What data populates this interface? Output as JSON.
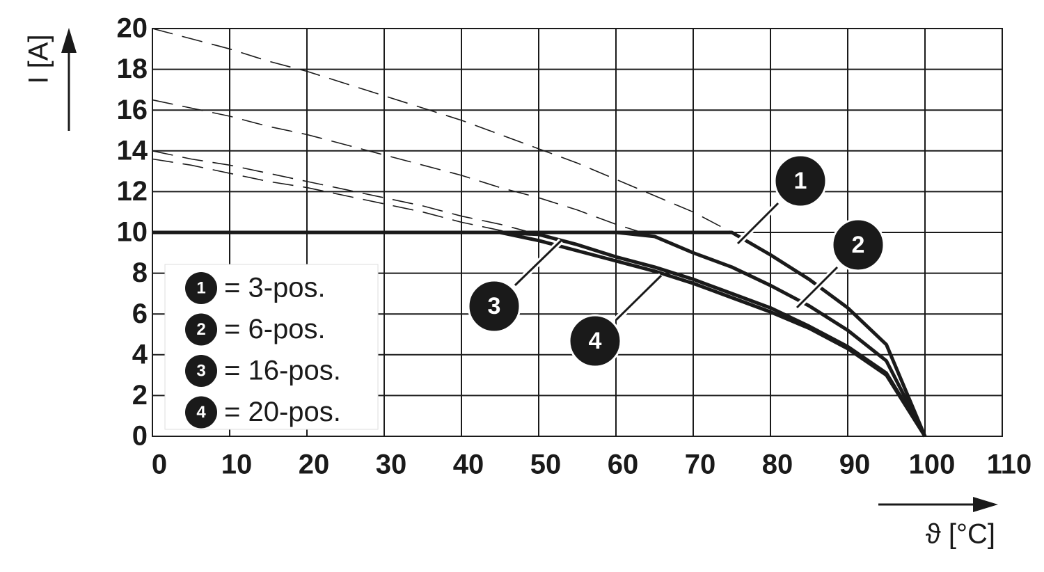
{
  "chart_data": {
    "type": "line",
    "y_label": "I [A]",
    "x_label": "ϑ [°C]",
    "x": [
      0,
      5,
      10,
      15,
      20,
      25,
      30,
      35,
      40,
      45,
      50,
      55,
      60,
      65,
      70,
      75,
      80,
      85,
      90,
      95,
      100
    ],
    "xlim": [
      0,
      110
    ],
    "xticks": [
      0,
      10,
      20,
      30,
      40,
      50,
      60,
      70,
      80,
      90,
      100,
      110
    ],
    "ylim": [
      0,
      20
    ],
    "yticks": [
      0,
      2,
      4,
      6,
      8,
      10,
      12,
      14,
      16,
      18,
      20
    ],
    "grid": true,
    "legend": "lower left",
    "series": [
      {
        "label": "1",
        "name": "= 3-pos.",
        "color": "#1a1a1a",
        "values": [
          20,
          19.5,
          19.0,
          18.4,
          17.9,
          17.3,
          16.7,
          16.1,
          15.5,
          14.8,
          14.1,
          13.4,
          12.6,
          11.8,
          11.0,
          10.0,
          8.9,
          7.7,
          6.3,
          4.5,
          0
        ],
        "rated_values": [
          10,
          10,
          10,
          10,
          10,
          10,
          10,
          10,
          10,
          10,
          10,
          10,
          10,
          10,
          10,
          10.0,
          8.9,
          7.7,
          6.3,
          4.5,
          0
        ]
      },
      {
        "label": "2",
        "name": "= 6-pos.",
        "color": "#1a1a1a",
        "values": [
          16.5,
          16.1,
          15.7,
          15.2,
          14.8,
          14.3,
          13.8,
          13.3,
          12.8,
          12.2,
          11.7,
          11.1,
          10.4,
          9.8,
          9.0,
          8.3,
          7.4,
          6.4,
          5.2,
          3.7,
          0
        ],
        "rated_values": [
          10,
          10,
          10,
          10,
          10,
          10,
          10,
          10,
          10,
          10,
          10,
          10,
          10,
          9.8,
          9.0,
          8.3,
          7.4,
          6.4,
          5.2,
          3.7,
          0
        ]
      },
      {
        "label": "3",
        "name": "= 16-pos.",
        "color": "#1a1a1a",
        "values": [
          14,
          13.6,
          13.3,
          12.9,
          12.5,
          12.1,
          11.7,
          11.3,
          10.8,
          10.4,
          9.9,
          9.4,
          8.8,
          8.3,
          7.7,
          7.0,
          6.3,
          5.4,
          4.4,
          3.1,
          0
        ],
        "rated_values": [
          10,
          10,
          10,
          10,
          10,
          10,
          10,
          10,
          10,
          10,
          9.9,
          9.4,
          8.8,
          8.3,
          7.7,
          7.0,
          6.3,
          5.4,
          4.4,
          3.1,
          0
        ]
      },
      {
        "label": "4",
        "name": "= 20-pos.",
        "color": "#1a1a1a",
        "values": [
          13.6,
          13.3,
          12.9,
          12.5,
          12.2,
          11.8,
          11.4,
          11.0,
          10.5,
          10.1,
          9.6,
          9.1,
          8.6,
          8.1,
          7.5,
          6.8,
          6.1,
          5.3,
          4.3,
          3.0,
          0
        ],
        "rated_values": [
          10,
          10,
          10,
          10,
          10,
          10,
          10,
          10,
          10,
          10,
          9.6,
          9.1,
          8.6,
          8.1,
          7.5,
          6.8,
          6.1,
          5.3,
          4.3,
          3.0,
          0
        ]
      }
    ]
  }
}
